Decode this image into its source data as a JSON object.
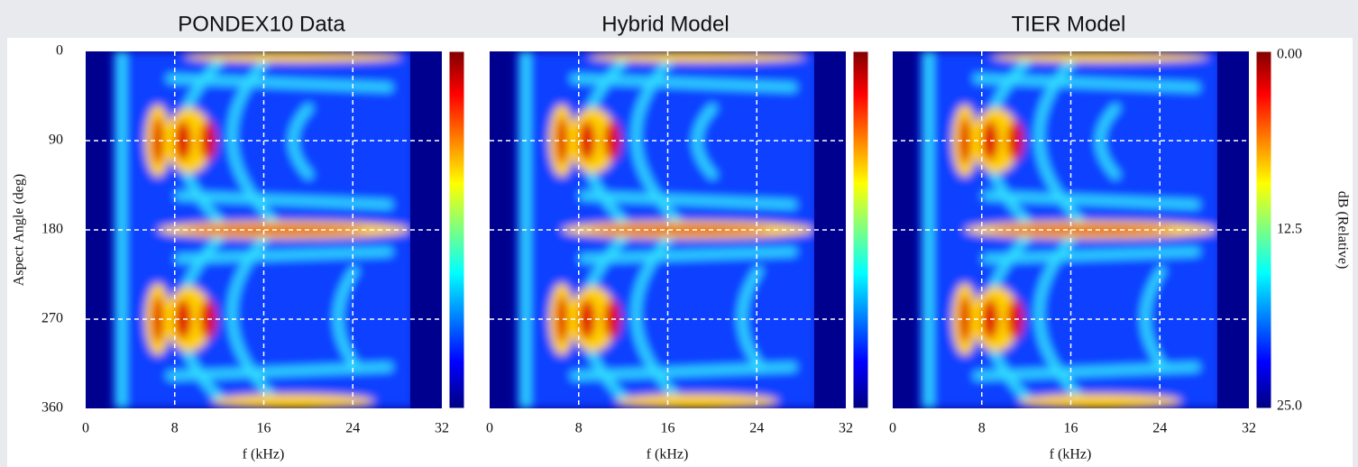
{
  "chart_data": [
    {
      "type": "heatmap",
      "title": "PONDEX10 Data",
      "xlabel": "f (kHz)",
      "ylabel": "Aspect Angle (deg)",
      "xlim": [
        0,
        32
      ],
      "xticks": [
        0,
        8,
        16,
        24,
        32
      ],
      "ylim": [
        360,
        0
      ],
      "yticks": [
        0,
        90,
        180,
        270,
        360
      ],
      "ytick_labels": true,
      "grid": true,
      "colormap": "jet",
      "colorbar": {
        "clim": [
          0,
          25
        ]
      }
    },
    {
      "type": "heatmap",
      "title": "Hybrid Model",
      "xlabel": "f (kHz)",
      "xlim": [
        0,
        32
      ],
      "xticks": [
        0,
        8,
        16,
        24,
        32
      ],
      "ylim": [
        360,
        0
      ],
      "yticks": [
        0,
        90,
        180,
        270,
        360
      ],
      "ytick_labels": false,
      "grid": true,
      "colormap": "jet",
      "colorbar": {
        "clim": [
          0,
          25
        ]
      }
    },
    {
      "type": "heatmap",
      "title": "TIER Model",
      "xlabel": "f (kHz)",
      "xlim": [
        0,
        32
      ],
      "xticks": [
        0,
        8,
        16,
        24,
        32
      ],
      "ylim": [
        360,
        0
      ],
      "yticks": [
        0,
        90,
        180,
        270,
        360
      ],
      "ytick_labels": false,
      "grid": true,
      "colormap": "jet",
      "colorbar": {
        "clim": [
          0,
          25
        ],
        "label": "dB (Relative)",
        "ticks": [
          {
            "value": 0,
            "label": "0.00"
          },
          12.5,
          {
            "value": 25,
            "label": "25.0"
          }
        ]
      }
    }
  ]
}
